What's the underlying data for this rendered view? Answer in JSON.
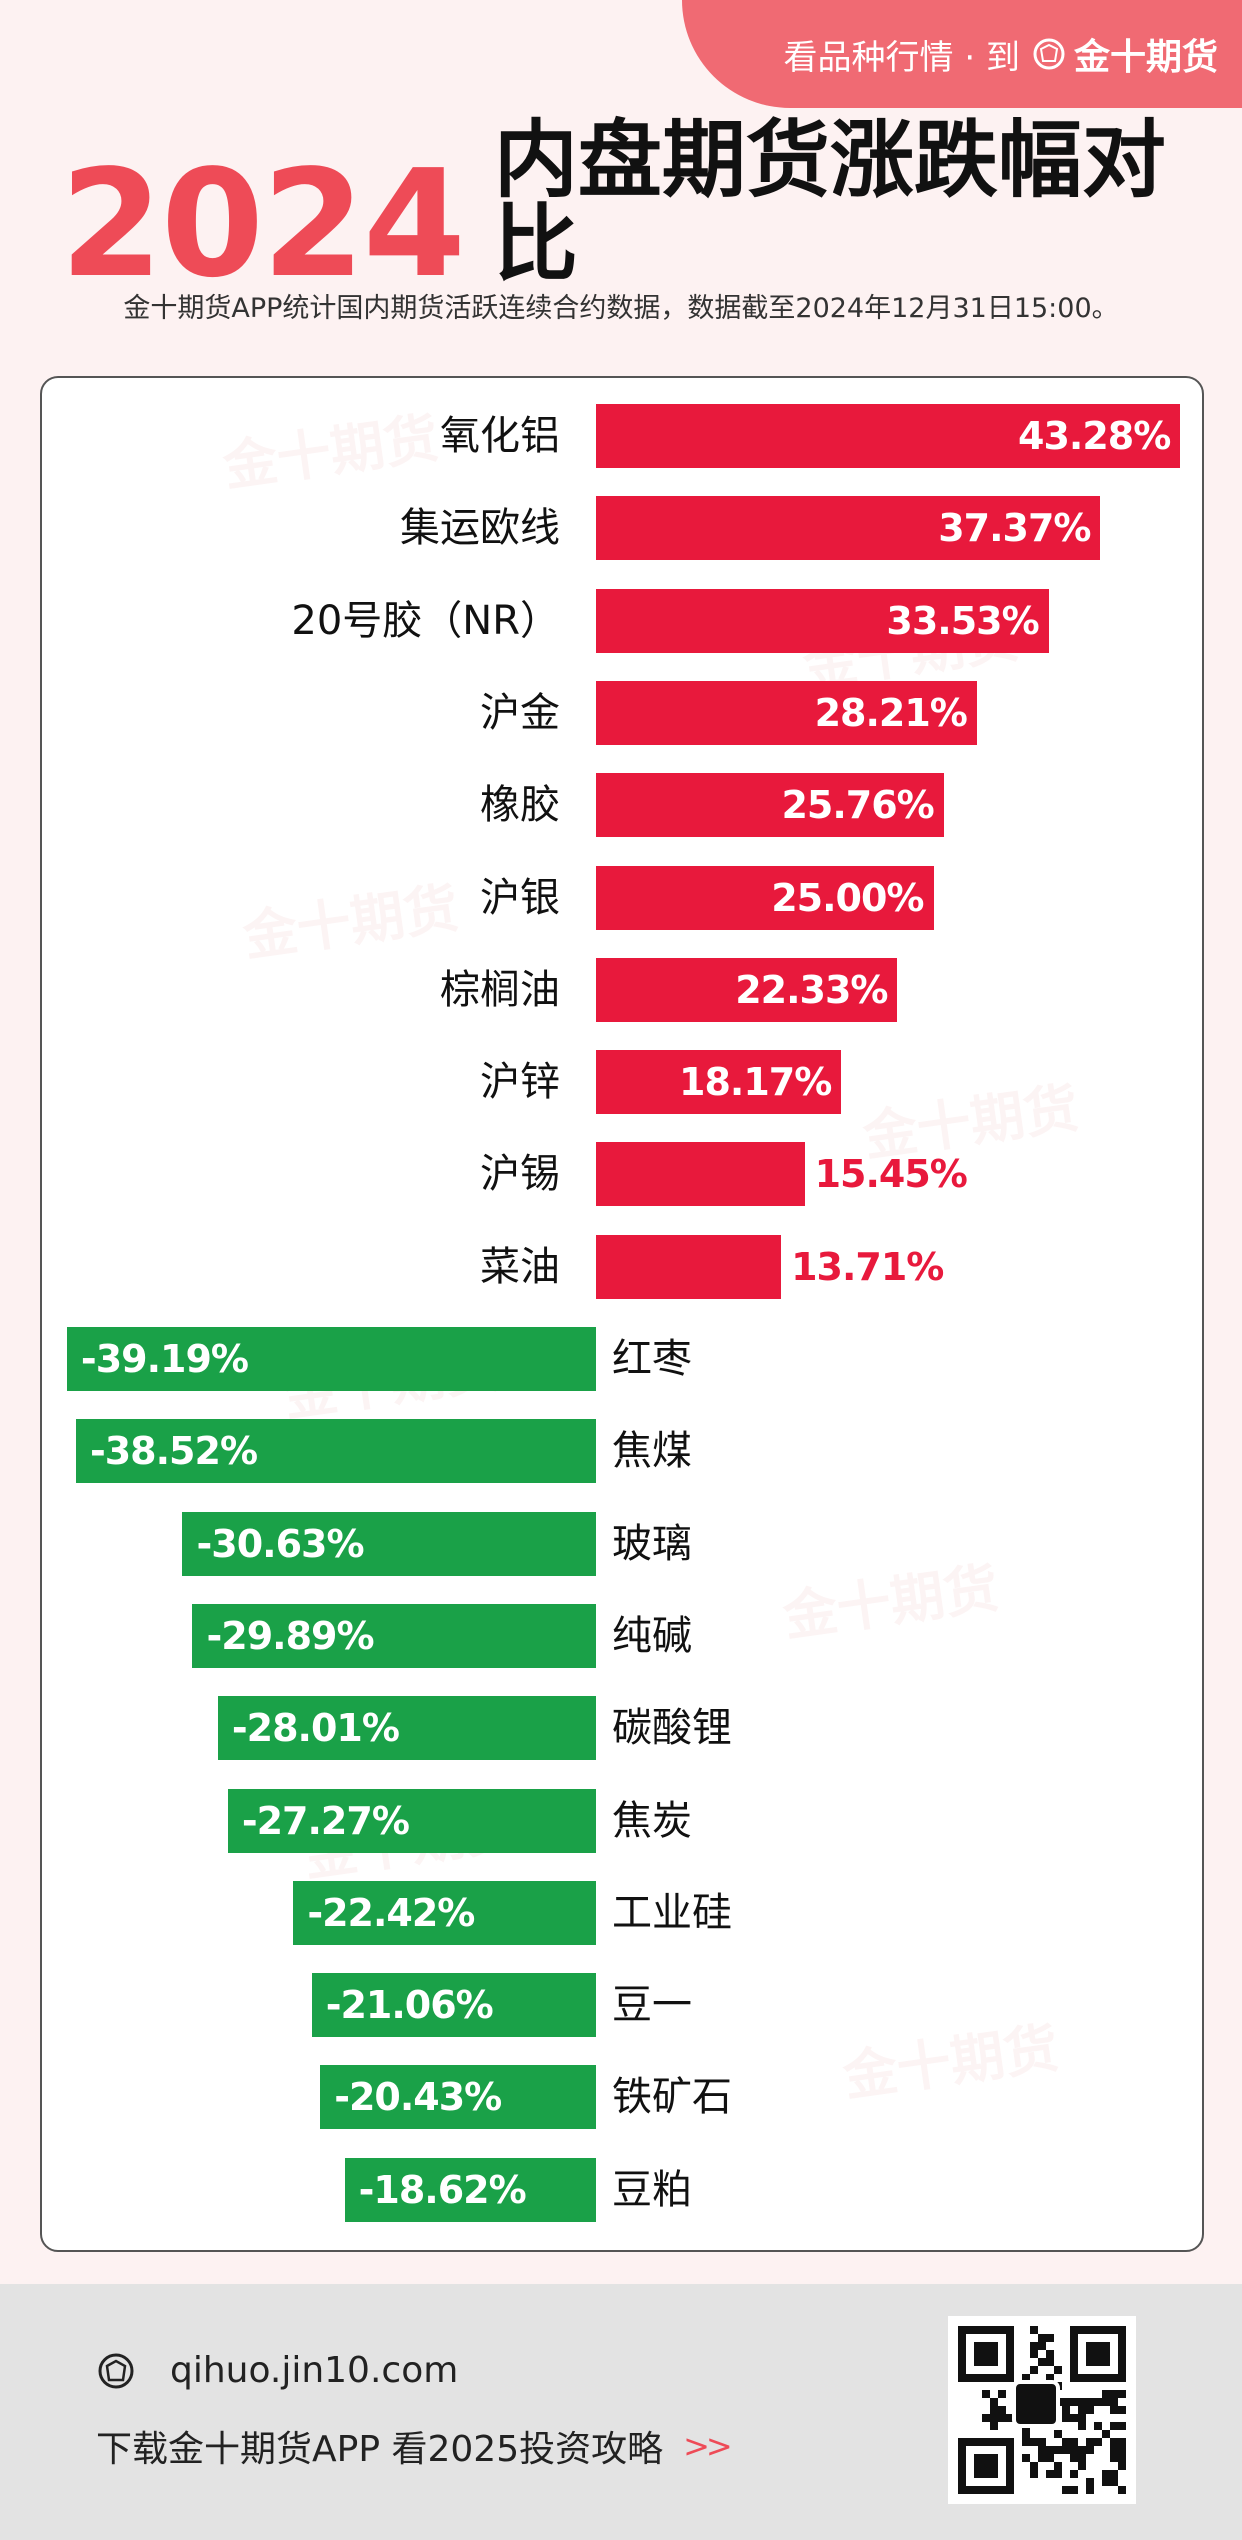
{
  "header": {
    "slogan": "看品种行情 · 到",
    "brand": "金十期货",
    "year": "2024",
    "title": "内盘期货涨跌幅对比",
    "subtitle": "金十期货APP统计国内期货活跃连续合约数据，数据截至2024年12月31日15:00。"
  },
  "colors": {
    "up": "#e8193c",
    "down": "#1aa148",
    "accent": "#ee4b57"
  },
  "watermark": "金十期货",
  "chart_data": {
    "type": "bar",
    "orientation": "horizontal",
    "unit": "%",
    "categories": [
      "氧化铝",
      "集运欧线",
      "20号胶（NR）",
      "沪金",
      "橡胶",
      "沪银",
      "棕榈油",
      "沪锌",
      "沪锡",
      "菜油",
      "红枣",
      "焦煤",
      "玻璃",
      "纯碱",
      "碳酸锂",
      "焦炭",
      "工业硅",
      "豆一",
      "铁矿石",
      "豆粕"
    ],
    "values": [
      43.28,
      37.37,
      33.53,
      28.21,
      25.76,
      25.0,
      22.33,
      18.17,
      15.45,
      13.71,
      -39.19,
      -38.52,
      -30.63,
      -29.89,
      -28.01,
      -27.27,
      -22.42,
      -21.06,
      -20.43,
      -18.62
    ],
    "labels": [
      "43.28%",
      "37.37%",
      "33.53%",
      "28.21%",
      "25.76%",
      "25.00%",
      "22.33%",
      "18.17%",
      "15.45%",
      "13.71%",
      "-39.19%",
      "-38.52%",
      "-30.63%",
      "-29.89%",
      "-28.01%",
      "-27.27%",
      "-22.42%",
      "-21.06%",
      "-20.43%",
      "-18.62%"
    ],
    "title": "2024 内盘期货涨跌幅对比",
    "xlabel": "",
    "ylabel": "",
    "xlim": [
      -40,
      45
    ],
    "grid": false,
    "legend": "none"
  },
  "footer": {
    "url": "qihuo.jin10.com",
    "cta": "下载金十期货APP 看2025投资攻略",
    "chevrons": ">>"
  }
}
